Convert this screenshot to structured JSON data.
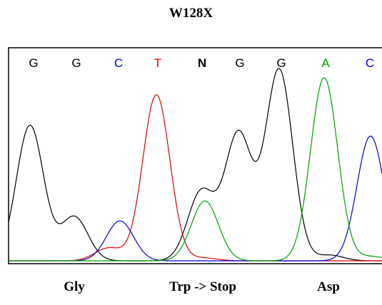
{
  "title": "W128X",
  "colors": {
    "G": "#000000",
    "A": "#00a000",
    "T": "#e00000",
    "C": "#0000e0",
    "N": "#000000"
  },
  "chart_data": {
    "type": "line",
    "bases": [
      "G",
      "G",
      "C",
      "T",
      "N",
      "G",
      "G",
      "A",
      "C"
    ],
    "codons": [
      "Gly",
      "Trp -> Stop",
      "Asp"
    ],
    "series": [
      {
        "color": "black",
        "peaks": [
          {
            "x": 42,
            "h": 190
          },
          {
            "x": 104,
            "h": 62
          },
          {
            "x": 282,
            "h": 97
          },
          {
            "x": 334,
            "h": 178
          },
          {
            "x": 391,
            "h": 268
          },
          {
            "x": 462,
            "h": 8
          }
        ]
      },
      {
        "color": "red",
        "peaks": [
          {
            "x": 152,
            "h": 18
          },
          {
            "x": 219,
            "h": 233
          },
          {
            "x": 285,
            "h": 4
          }
        ]
      },
      {
        "color": "blue",
        "peaks": [
          {
            "x": 168,
            "h": 56
          },
          {
            "x": 519,
            "h": 175
          }
        ]
      },
      {
        "color": "green",
        "peaks": [
          {
            "x": 287,
            "h": 84
          },
          {
            "x": 454,
            "h": 257
          },
          {
            "x": 520,
            "h": 6
          }
        ]
      }
    ]
  }
}
